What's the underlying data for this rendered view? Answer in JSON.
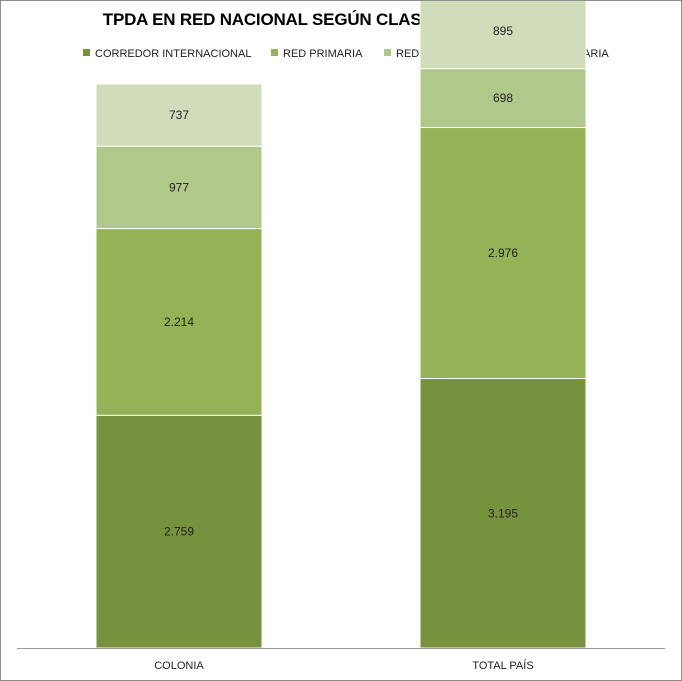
{
  "chart_data": {
    "type": "bar",
    "stacked": true,
    "title": "TPDA EN RED NACIONAL SEGÚN CLASIFICACIÓN (veh/día)",
    "categories": [
      "COLONIA",
      "TOTAL PAÍS"
    ],
    "series": [
      {
        "name": "CORREDOR INTERNACIONAL",
        "color": "#77923c",
        "values": [
          2759,
          3195
        ],
        "labels": [
          "2.759",
          "3.195"
        ]
      },
      {
        "name": "RED PRIMARIA",
        "color": "#93b356",
        "values": [
          2214,
          2976
        ],
        "labels": [
          "2.214",
          "2.976"
        ]
      },
      {
        "name": "RED SECUNDARIA",
        "color": "#b0c98a",
        "values": [
          977,
          698
        ],
        "labels": [
          "977",
          "698"
        ]
      },
      {
        "name": "RED TERCIARIA",
        "color": "#d0dcba",
        "values": [
          737,
          895
        ],
        "labels": [
          "737",
          "895"
        ]
      }
    ],
    "legend_position": "top",
    "grid": false
  }
}
